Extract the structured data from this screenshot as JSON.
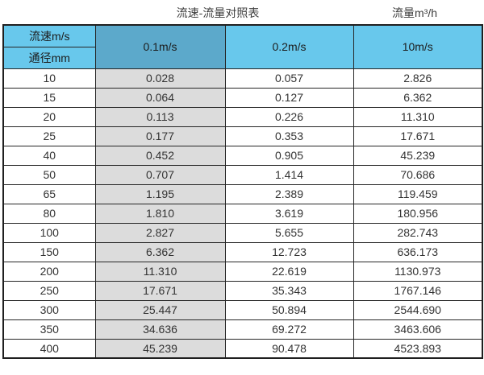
{
  "titles": {
    "main": "流速-流量对照表",
    "right": "流量m³/h"
  },
  "table": {
    "header": {
      "corner_top": "流速m/s",
      "corner_bottom": "通径mm",
      "col_01": "0.1m/s",
      "col_02": "0.2m/s",
      "col_10": "10m/s"
    },
    "rows": [
      {
        "dn": "10",
        "v01": "0.028",
        "v02": "0.057",
        "v10": "2.826"
      },
      {
        "dn": "15",
        "v01": "0.064",
        "v02": "0.127",
        "v10": "6.362"
      },
      {
        "dn": "20",
        "v01": "0.113",
        "v02": "0.226",
        "v10": "11.310"
      },
      {
        "dn": "25",
        "v01": "0.177",
        "v02": "0.353",
        "v10": "17.671"
      },
      {
        "dn": "40",
        "v01": "0.452",
        "v02": "0.905",
        "v10": "45.239"
      },
      {
        "dn": "50",
        "v01": "0.707",
        "v02": "1.414",
        "v10": "70.686"
      },
      {
        "dn": "65",
        "v01": "1.195",
        "v02": "2.389",
        "v10": "119.459"
      },
      {
        "dn": "80",
        "v01": "1.810",
        "v02": "3.619",
        "v10": "180.956"
      },
      {
        "dn": "100",
        "v01": "2.827",
        "v02": "5.655",
        "v10": "282.743"
      },
      {
        "dn": "150",
        "v01": "6.362",
        "v02": "12.723",
        "v10": "636.173"
      },
      {
        "dn": "200",
        "v01": "11.310",
        "v02": "22.619",
        "v10": "1130.973"
      },
      {
        "dn": "250",
        "v01": "17.671",
        "v02": "35.343",
        "v10": "1767.146"
      },
      {
        "dn": "300",
        "v01": "25.447",
        "v02": "50.894",
        "v10": "2544.690"
      },
      {
        "dn": "350",
        "v01": "34.636",
        "v02": "69.272",
        "v10": "3463.606"
      },
      {
        "dn": "400",
        "v01": "45.239",
        "v02": "90.478",
        "v10": "4523.893"
      }
    ]
  },
  "colors": {
    "header_cyan": "#68C8EC",
    "header_dark_blue": "#5CA9CB",
    "shaded_column_gray": "#DCDCDC",
    "border": "#262626",
    "text": "#333333"
  },
  "chart_data": {
    "type": "table",
    "title": "流速-流量对照表",
    "unit_label": "流量m³/h",
    "row_axis_label": "通径mm",
    "column_axis_label": "流速m/s",
    "categories": [
      "10",
      "15",
      "20",
      "25",
      "40",
      "50",
      "65",
      "80",
      "100",
      "150",
      "200",
      "250",
      "300",
      "350",
      "400"
    ],
    "series": [
      {
        "name": "0.1m/s",
        "values": [
          0.028,
          0.064,
          0.113,
          0.177,
          0.452,
          0.707,
          1.195,
          1.81,
          2.827,
          6.362,
          11.31,
          17.671,
          25.447,
          34.636,
          45.239
        ]
      },
      {
        "name": "0.2m/s",
        "values": [
          0.057,
          0.127,
          0.226,
          0.353,
          0.905,
          1.414,
          2.389,
          3.619,
          5.655,
          12.723,
          22.619,
          35.343,
          50.894,
          69.272,
          90.478
        ]
      },
      {
        "name": "10m/s",
        "values": [
          2.826,
          6.362,
          11.31,
          17.671,
          45.239,
          70.686,
          119.459,
          180.956,
          282.743,
          636.173,
          1130.973,
          1767.146,
          2544.69,
          3463.606,
          4523.893
        ]
      }
    ]
  }
}
